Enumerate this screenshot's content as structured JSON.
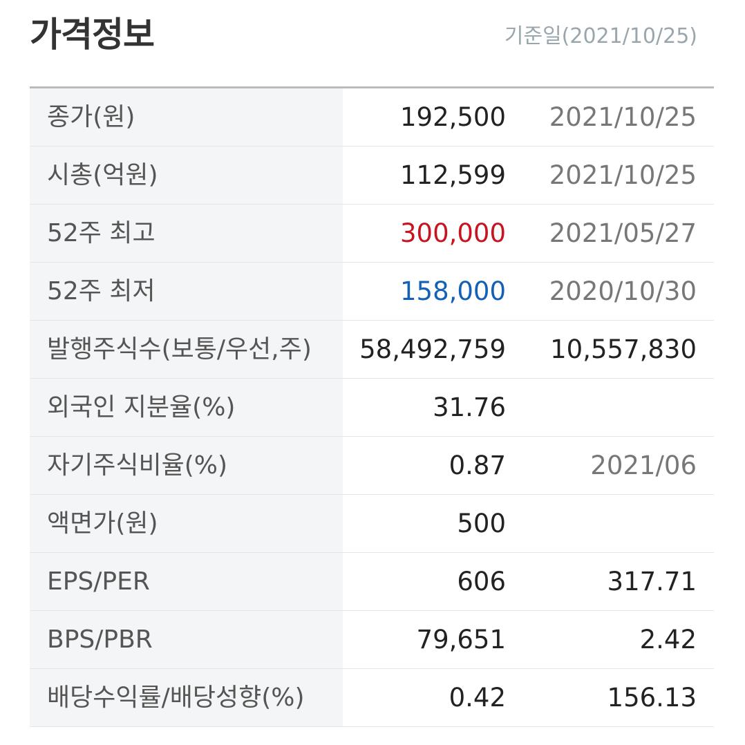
{
  "header": {
    "title": "가격정보",
    "base_date": "기준일(2021/10/25)"
  },
  "colors": {
    "up": "#c8141e",
    "down": "#1360b6",
    "label_bg": "#f4f5f6"
  },
  "rows": [
    {
      "label": "종가(원)",
      "value": "192,500",
      "extra": "2021/10/25"
    },
    {
      "label": "시총(억원)",
      "value": "112,599",
      "extra": "2021/10/25"
    },
    {
      "label": "52주 최고",
      "value": "300,000",
      "extra": "2021/05/27"
    },
    {
      "label": "52주 최저",
      "value": "158,000",
      "extra": "2020/10/30"
    },
    {
      "label": "발행주식수(보통/우선,주)",
      "value": "58,492,759",
      "extra": "10,557,830"
    },
    {
      "label": "외국인 지분율(%)",
      "value": "31.76",
      "extra": ""
    },
    {
      "label": "자기주식비율(%)",
      "value": "0.87",
      "extra": "2021/06"
    },
    {
      "label": "액면가(원)",
      "value": "500",
      "extra": ""
    },
    {
      "label": "EPS/PER",
      "value": "606",
      "extra": "317.71"
    },
    {
      "label": "BPS/PBR",
      "value": "79,651",
      "extra": "2.42"
    },
    {
      "label": "배당수익률/배당성향(%)",
      "value": "0.42",
      "extra": "156.13"
    }
  ]
}
